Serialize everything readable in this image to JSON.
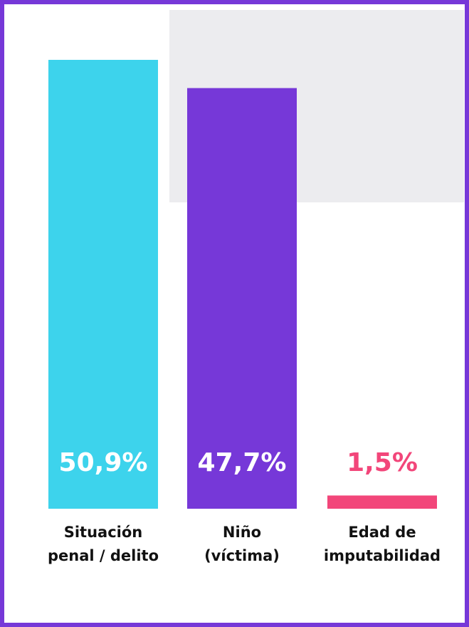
{
  "chart_data": {
    "type": "bar",
    "categories": [
      [
        "Situación",
        "penal / delito"
      ],
      [
        "Niño",
        "(víctima)"
      ],
      [
        "Edad de",
        "imputabilidad"
      ]
    ],
    "values": [
      50.9,
      47.7,
      1.5
    ],
    "value_labels": [
      "50,9%",
      "47,7%",
      "1,5%"
    ],
    "colors": [
      "#3dd3ec",
      "#7638d8",
      "#f2467a"
    ],
    "border_color": "#7638d8"
  }
}
